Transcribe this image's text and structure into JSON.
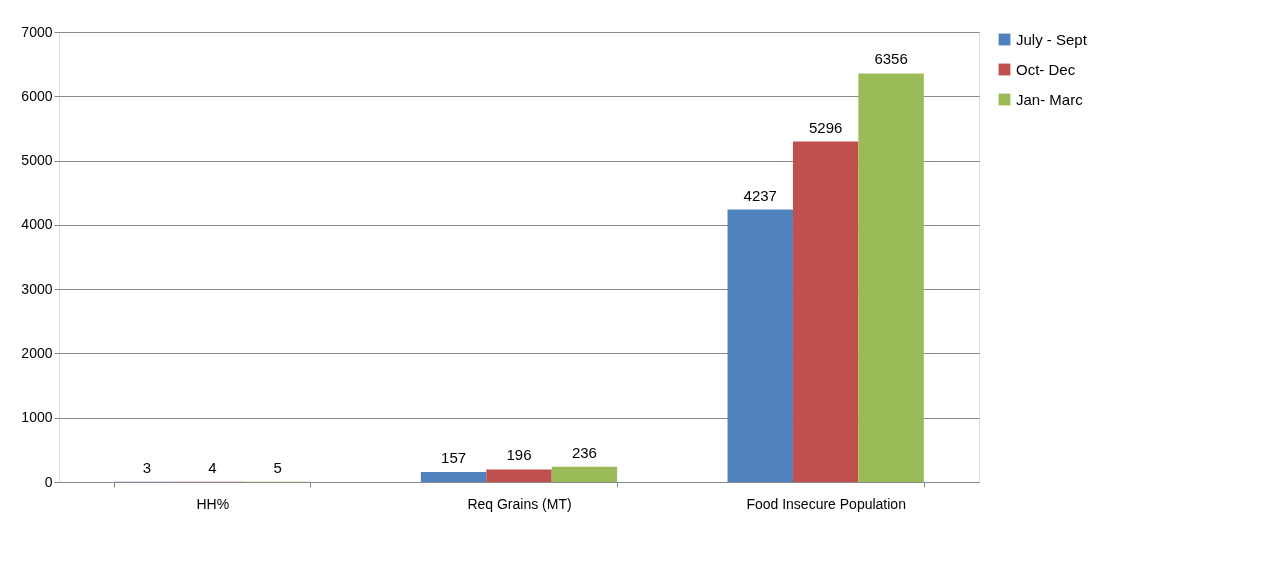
{
  "chart_data": {
    "type": "bar",
    "categories": [
      "HH%",
      "Req Grains (MT)",
      "Food Insecure Population"
    ],
    "series": [
      {
        "name": "July - Sept",
        "color": "#4f81bd",
        "values": [
          3,
          157,
          4237
        ]
      },
      {
        "name": "Oct- Dec",
        "color": "#c0504d",
        "values": [
          4,
          196,
          5296
        ]
      },
      {
        "name": "Jan- Marc",
        "color": "#9bbb59",
        "values": [
          5,
          236,
          6356
        ]
      }
    ],
    "ylim": [
      0,
      7000
    ],
    "yticks": [
      0,
      1000,
      2000,
      3000,
      4000,
      5000,
      6000,
      7000
    ],
    "grid": "y",
    "legend": "right",
    "data_labels": true
  }
}
